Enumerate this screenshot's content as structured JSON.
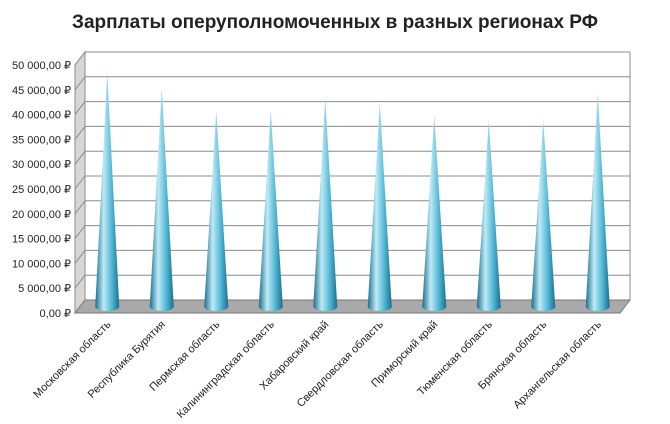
{
  "chart_data": {
    "type": "bar",
    "title": "Зарплаты оперуполномоченных в разных регионах РФ",
    "categories": [
      "Московская область",
      "Республика Бурятия",
      "Пермская область",
      "Калининградская область",
      "Хабаровский край",
      "Свердловская область",
      "Приморский край",
      "Тюменская область",
      "Брянская область",
      "Архангельская область"
    ],
    "values": [
      47000,
      44000,
      39500,
      39500,
      42000,
      41000,
      38500,
      37500,
      37500,
      43000
    ],
    "ylim": [
      0,
      50000
    ],
    "y_ticks": [
      "0,00 ₽",
      "5 000,00 ₽",
      "10 000,00 ₽",
      "15 000,00 ₽",
      "20 000,00 ₽",
      "25 000,00 ₽",
      "30 000,00 ₽",
      "35 000,00 ₽",
      "40 000,00 ₽",
      "45 000,00 ₽",
      "50 000,00 ₽"
    ],
    "xlabel": "",
    "ylabel": "",
    "grid": true,
    "style": "3d-cone",
    "colors": {
      "cone_light": "#bfeaf6",
      "cone_mid": "#4fb5d3",
      "cone_dark": "#1a6f8c",
      "wall": "#d6d6d6",
      "floor": "#a9a9a9",
      "grid": "#8c8c8c"
    }
  }
}
